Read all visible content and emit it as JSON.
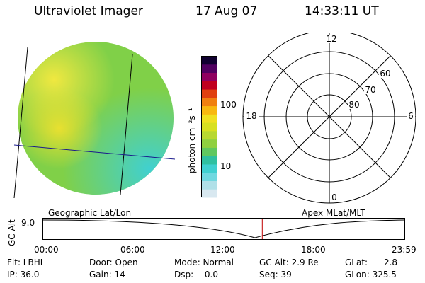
{
  "header": {
    "title": "Ultraviolet Imager",
    "date": "17 Aug 07",
    "time": "14:33:11 UT"
  },
  "colorbar": {
    "unit_label": "photon cm⁻²s⁻¹",
    "ticks": [
      "100",
      "10"
    ],
    "colors": [
      "#d8e8f0",
      "#b0e0e8",
      "#70d8e0",
      "#40d0d0",
      "#30c0a0",
      "#60c860",
      "#90d040",
      "#b8d830",
      "#d8e020",
      "#f0e020",
      "#f8b810",
      "#f08010",
      "#e04010",
      "#c00020",
      "#900060",
      "#500060",
      "#100030"
    ]
  },
  "polar_plot": {
    "mlt_labels": {
      "top": "12",
      "right": "6",
      "bottom": "0",
      "left": "18"
    },
    "lat_labels": [
      "60",
      "70",
      "80"
    ]
  },
  "footer_labels": {
    "left": "Geographic Lat/Lon",
    "right": "Apex  MLat/MLT"
  },
  "timeline": {
    "ylabel": "GC Alt",
    "ytick": "9.0",
    "xticks": [
      "00:00",
      "06:00",
      "12:00",
      "18:00",
      "23:59"
    ],
    "current_time_hours": 14.55
  },
  "info": {
    "flt": "Flt: LBHL",
    "ip": "IP: 36.0",
    "door": "Door: Open",
    "gain": "Gain: 14",
    "mode": "Mode: Normal",
    "dsp": "Dsp:   -0.0",
    "gcalt": "GC Alt: 2.9 Re",
    "seq": "Seq: 39",
    "glat": "GLat:      2.8",
    "glon": "GLon: 325.5"
  }
}
